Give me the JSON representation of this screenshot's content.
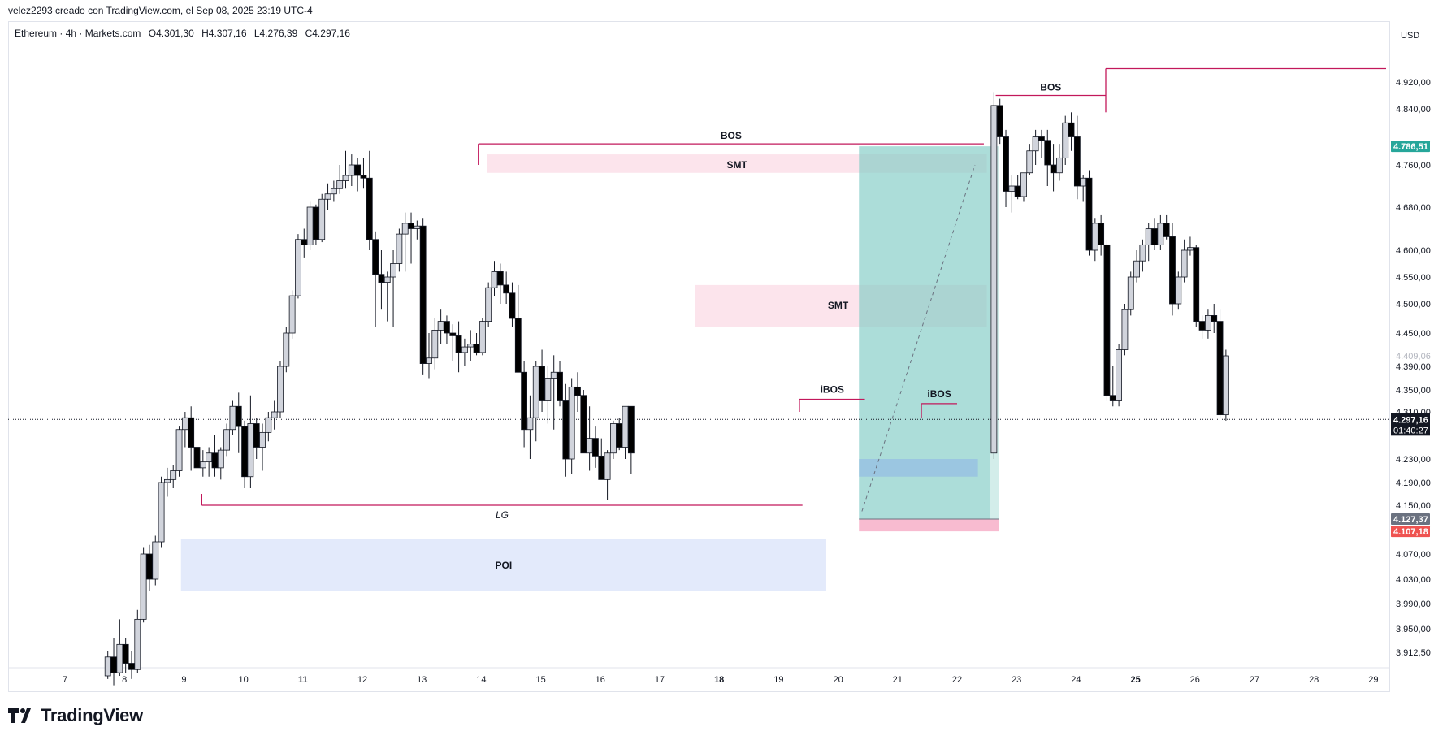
{
  "header": {
    "attribution": "velez2293 creado con TradingView.com, el Sep 08, 2025 23:19 UTC-4"
  },
  "legend": {
    "symbol": "Ethereum · 4h · Markets.com",
    "open": "O4.301,30",
    "high": "H4.307,16",
    "low": "L4.276,39",
    "close": "C4.297,16"
  },
  "price_axis": {
    "currency": "USD"
  },
  "branding": {
    "logo_text": "TradingView"
  },
  "colors": {
    "up_candle": "#d1d4dc",
    "down_candle": "#000000",
    "bos_line": "#c2185b",
    "smt_zone": "#fce4ec",
    "poi_zone": "#e3eafb",
    "long_profit": "#80cbc4",
    "long_stop": "#f8bbd0",
    "current_price_bg": "#131722",
    "target_label_bg": "#26a69a",
    "stop_label_bg": "#ef5350"
  },
  "chart_data": {
    "type": "candlestick",
    "title": "",
    "y_ticks": [
      "4.920,00",
      "4.840,00",
      "4.760,00",
      "4.680,00",
      "4.600,00",
      "4.550,00",
      "4.500,00",
      "4.450,00",
      "4.390,00",
      "4.350,00",
      "4.310,00",
      "4.230,00",
      "4.190,00",
      "4.150,00",
      "4.070,00",
      "4.030,00",
      "3.990,00",
      "3.950,00",
      "3.912,50"
    ],
    "x_ticks": [
      "7",
      "8",
      "9",
      "10",
      "11",
      "12",
      "13",
      "14",
      "15",
      "16",
      "17",
      "18",
      "19",
      "20",
      "21",
      "22",
      "23",
      "24",
      "25",
      "26",
      "27",
      "28",
      "29"
    ],
    "bold_x_ticks": [
      "11",
      "18",
      "25"
    ],
    "price_labels": {
      "target": "4.786,51",
      "faded": "4.409,06",
      "current": "4.297,16",
      "countdown": "01:40:27",
      "entry": "4.127,37",
      "stop": "4.107,18"
    },
    "annotations": {
      "bos_main": "BOS",
      "bos_right": "BOS",
      "smt_top": "SMT",
      "smt_mid": "SMT",
      "ibos_left": "iBOS",
      "ibos_right": "iBOS",
      "lg": "LG",
      "poi": "POI"
    },
    "candles": [
      [
        7.72,
        3875,
        3915,
        3870,
        3905
      ],
      [
        7.82,
        3905,
        3935,
        3860,
        3880
      ],
      [
        7.92,
        3880,
        3965,
        3875,
        3925
      ],
      [
        8.02,
        3925,
        3935,
        3880,
        3895
      ],
      [
        8.12,
        3895,
        3915,
        3870,
        3885
      ],
      [
        8.22,
        3885,
        3980,
        3880,
        3965
      ],
      [
        8.32,
        3965,
        4080,
        3960,
        4070
      ],
      [
        8.42,
        4070,
        4085,
        4010,
        4030
      ],
      [
        8.52,
        4030,
        4100,
        4020,
        4090
      ],
      [
        8.62,
        4090,
        4200,
        4080,
        4190
      ],
      [
        8.72,
        4190,
        4215,
        4165,
        4195
      ],
      [
        8.82,
        4195,
        4220,
        4180,
        4210
      ],
      [
        8.92,
        4210,
        4285,
        4200,
        4280
      ],
      [
        9.02,
        4280,
        4310,
        4250,
        4300
      ],
      [
        9.12,
        4300,
        4320,
        4210,
        4250
      ],
      [
        9.22,
        4250,
        4275,
        4190,
        4215
      ],
      [
        9.32,
        4215,
        4245,
        4200,
        4225
      ],
      [
        9.42,
        4225,
        4250,
        4200,
        4240
      ],
      [
        9.52,
        4240,
        4270,
        4200,
        4215
      ],
      [
        9.62,
        4215,
        4250,
        4195,
        4245
      ],
      [
        9.72,
        4245,
        4290,
        4235,
        4280
      ],
      [
        9.82,
        4280,
        4330,
        4270,
        4320
      ],
      [
        9.92,
        4320,
        4345,
        4240,
        4285
      ],
      [
        10.02,
        4285,
        4295,
        4180,
        4200
      ],
      [
        10.12,
        4200,
        4340,
        4180,
        4290
      ],
      [
        10.22,
        4290,
        4300,
        4230,
        4250
      ],
      [
        10.32,
        4250,
        4290,
        4210,
        4275
      ],
      [
        10.42,
        4275,
        4310,
        4260,
        4300
      ],
      [
        10.52,
        4300,
        4330,
        4280,
        4310
      ],
      [
        10.62,
        4310,
        4400,
        4300,
        4390
      ],
      [
        10.72,
        4390,
        4460,
        4380,
        4450
      ],
      [
        10.82,
        4450,
        4525,
        4440,
        4515
      ],
      [
        10.92,
        4515,
        4630,
        4510,
        4620
      ],
      [
        11.02,
        4620,
        4640,
        4585,
        4610
      ],
      [
        11.12,
        4610,
        4690,
        4600,
        4680
      ],
      [
        11.22,
        4680,
        4685,
        4610,
        4620
      ],
      [
        11.32,
        4620,
        4705,
        4615,
        4695
      ],
      [
        11.42,
        4695,
        4725,
        4675,
        4705
      ],
      [
        11.52,
        4705,
        4730,
        4690,
        4715
      ],
      [
        11.62,
        4715,
        4760,
        4705,
        4730
      ],
      [
        11.72,
        4730,
        4780,
        4715,
        4740
      ],
      [
        11.82,
        4740,
        4775,
        4720,
        4760
      ],
      [
        11.92,
        4760,
        4770,
        4710,
        4740
      ],
      [
        12.02,
        4740,
        4770,
        4715,
        4735
      ],
      [
        12.12,
        4735,
        4780,
        4600,
        4620
      ],
      [
        12.22,
        4620,
        4635,
        4460,
        4555
      ],
      [
        12.32,
        4555,
        4600,
        4490,
        4540
      ],
      [
        12.42,
        4540,
        4560,
        4470,
        4550
      ],
      [
        12.52,
        4550,
        4600,
        4460,
        4575
      ],
      [
        12.62,
        4575,
        4640,
        4560,
        4630
      ],
      [
        12.72,
        4630,
        4670,
        4560,
        4650
      ],
      [
        12.82,
        4650,
        4670,
        4575,
        4640
      ],
      [
        12.92,
        4640,
        4655,
        4620,
        4645
      ],
      [
        13.02,
        4645,
        4660,
        4375,
        4395
      ],
      [
        13.12,
        4395,
        4450,
        4370,
        4405
      ],
      [
        13.22,
        4405,
        4475,
        4385,
        4455
      ],
      [
        13.32,
        4455,
        4490,
        4430,
        4470
      ],
      [
        13.42,
        4470,
        4480,
        4430,
        4450
      ],
      [
        13.52,
        4450,
        4465,
        4400,
        4445
      ],
      [
        13.62,
        4445,
        4470,
        4380,
        4415
      ],
      [
        13.72,
        4415,
        4440,
        4390,
        4425
      ],
      [
        13.82,
        4425,
        4455,
        4400,
        4430
      ],
      [
        13.92,
        4430,
        4450,
        4410,
        4415
      ],
      [
        14.02,
        4415,
        4475,
        4410,
        4470
      ],
      [
        14.12,
        4470,
        4540,
        4460,
        4530
      ],
      [
        14.22,
        4530,
        4580,
        4515,
        4560
      ],
      [
        14.32,
        4560,
        4575,
        4500,
        4535
      ],
      [
        14.42,
        4535,
        4560,
        4500,
        4520
      ],
      [
        14.52,
        4520,
        4540,
        4460,
        4475
      ],
      [
        14.62,
        4475,
        4535,
        4380,
        4380
      ],
      [
        14.72,
        4380,
        4400,
        4250,
        4280
      ],
      [
        14.82,
        4280,
        4340,
        4230,
        4300
      ],
      [
        14.92,
        4300,
        4400,
        4260,
        4390
      ],
      [
        15.02,
        4390,
        4420,
        4310,
        4330
      ],
      [
        15.12,
        4330,
        4390,
        4290,
        4370
      ],
      [
        15.22,
        4370,
        4410,
        4280,
        4380
      ],
      [
        15.32,
        4380,
        4400,
        4320,
        4330
      ],
      [
        15.42,
        4330,
        4360,
        4200,
        4230
      ],
      [
        15.52,
        4230,
        4370,
        4205,
        4355
      ],
      [
        15.62,
        4355,
        4380,
        4310,
        4340
      ],
      [
        15.72,
        4340,
        4350,
        4245,
        4240
      ],
      [
        15.82,
        4240,
        4320,
        4210,
        4265
      ],
      [
        15.92,
        4265,
        4285,
        4215,
        4235
      ],
      [
        16.02,
        4235,
        4265,
        4195,
        4195
      ],
      [
        16.12,
        4195,
        4245,
        4160,
        4240
      ],
      [
        16.22,
        4240,
        4295,
        4230,
        4290
      ],
      [
        16.32,
        4290,
        4300,
        4245,
        4250
      ],
      [
        16.42,
        4250,
        4315,
        4230,
        4320
      ],
      [
        16.52,
        4320,
        4320,
        4205,
        4240
      ]
    ]
  }
}
